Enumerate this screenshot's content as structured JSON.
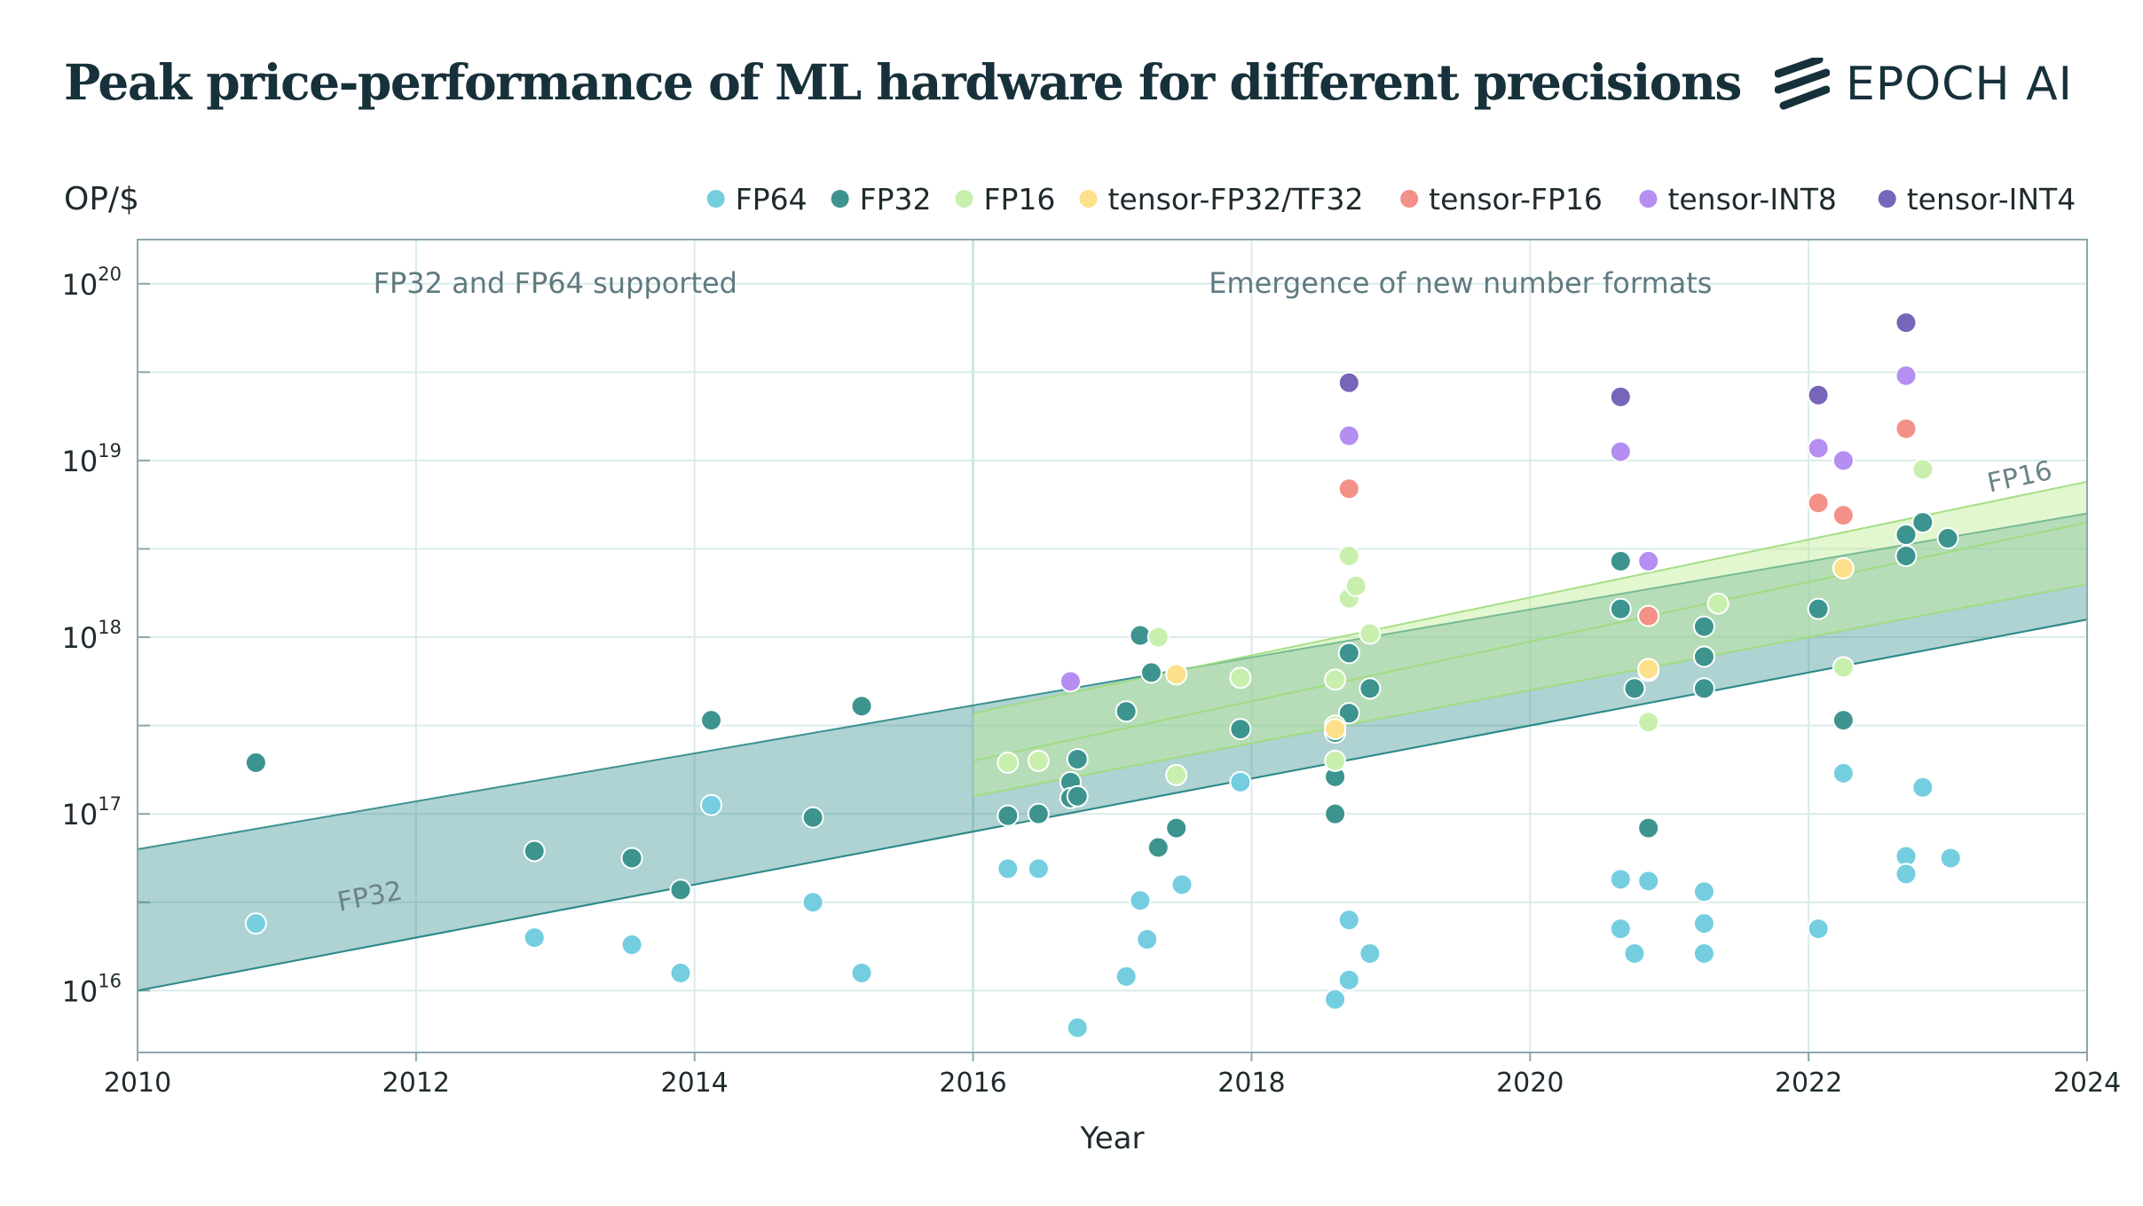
{
  "title": "Peak price-performance of ML hardware for different precisions",
  "brand": {
    "logo_text": "EPOCH AI",
    "logo_icon": "epoch-stripes-icon",
    "color": "#17313b"
  },
  "chart_data": {
    "type": "scatter",
    "ylabel": "OP/$",
    "xlabel": "Year",
    "x_range": [
      2010,
      2024
    ],
    "y_range_log10": [
      15.65,
      20.25
    ],
    "y_scale": "log",
    "x_ticks": [
      "2010",
      "2012",
      "2014",
      "2016",
      "2018",
      "2020",
      "2022",
      "2024"
    ],
    "y_ticks": [
      {
        "base": "10",
        "exp": "16",
        "log": 16
      },
      {
        "base": "10",
        "exp": "17",
        "log": 17
      },
      {
        "base": "10",
        "exp": "18",
        "log": 18
      },
      {
        "base": "10",
        "exp": "19",
        "log": 19
      },
      {
        "base": "10",
        "exp": "20",
        "log": 20
      }
    ],
    "grid": true,
    "legend_position": "top",
    "annotations": [
      {
        "text": "FP32 and FP64 supported",
        "x": 2013,
        "log_y": 20.0
      },
      {
        "text": "Emergence of new number formats",
        "x": 2019.5,
        "log_y": 20.0
      }
    ],
    "divider_x": 2016,
    "trend_bands": [
      {
        "name": "FP32",
        "color": "#2e8a88",
        "fill": "rgba(46,138,136,0.38)",
        "upper": [
          [
            2010,
            16.8
          ],
          [
            2024,
            18.7
          ]
        ],
        "lower": [
          [
            2010,
            16.0
          ],
          [
            2024,
            18.1
          ]
        ],
        "center": [
          [
            2010,
            16.0
          ],
          [
            2024,
            18.1
          ]
        ],
        "label": "FP32",
        "label_x": 2011.45,
        "label_log_y": 16.45
      },
      {
        "name": "FP16",
        "color": "#9fdc7a",
        "fill": "rgba(190,235,150,0.45)",
        "upper": [
          [
            2016,
            17.57
          ],
          [
            2024,
            18.88
          ]
        ],
        "lower": [
          [
            2016,
            17.1
          ],
          [
            2024,
            18.3
          ]
        ],
        "center": [
          [
            2016,
            17.3
          ],
          [
            2024,
            18.65
          ]
        ],
        "label": "FP16",
        "label_x": 2023.3,
        "label_log_y": 18.82
      }
    ],
    "series": [
      {
        "name": "FP64",
        "color": "#74cee0",
        "points": [
          [
            2010.85,
            16.38
          ],
          [
            2012.85,
            16.3
          ],
          [
            2013.55,
            16.26
          ],
          [
            2013.9,
            16.1
          ],
          [
            2014.12,
            17.05
          ],
          [
            2014.85,
            16.5
          ],
          [
            2015.2,
            16.1
          ],
          [
            2016.25,
            16.69
          ],
          [
            2016.47,
            16.69
          ],
          [
            2016.75,
            15.79
          ],
          [
            2017.1,
            16.08
          ],
          [
            2017.2,
            16.51
          ],
          [
            2017.25,
            16.29
          ],
          [
            2017.5,
            16.6
          ],
          [
            2017.92,
            17.18
          ],
          [
            2018.6,
            15.95
          ],
          [
            2018.7,
            16.4
          ],
          [
            2018.7,
            16.06
          ],
          [
            2018.85,
            16.21
          ],
          [
            2020.65,
            16.63
          ],
          [
            2020.65,
            16.35
          ],
          [
            2020.75,
            16.21
          ],
          [
            2020.85,
            16.62
          ],
          [
            2021.25,
            16.56
          ],
          [
            2021.25,
            16.38
          ],
          [
            2021.25,
            16.21
          ],
          [
            2022.07,
            16.35
          ],
          [
            2022.25,
            17.23
          ],
          [
            2022.7,
            16.76
          ],
          [
            2022.7,
            16.66
          ],
          [
            2022.82,
            17.15
          ],
          [
            2023.02,
            16.75
          ]
        ]
      },
      {
        "name": "FP32",
        "color": "#3d948f",
        "points": [
          [
            2010.85,
            17.29
          ],
          [
            2012.85,
            16.79
          ],
          [
            2013.55,
            16.75
          ],
          [
            2013.9,
            16.57
          ],
          [
            2014.12,
            17.53
          ],
          [
            2014.85,
            16.98
          ],
          [
            2015.2,
            17.61
          ],
          [
            2016.25,
            16.99
          ],
          [
            2016.47,
            17.0
          ],
          [
            2016.7,
            17.18
          ],
          [
            2016.7,
            17.09
          ],
          [
            2016.75,
            17.31
          ],
          [
            2016.75,
            17.1
          ],
          [
            2017.1,
            17.58
          ],
          [
            2017.2,
            18.01
          ],
          [
            2017.28,
            17.8
          ],
          [
            2017.33,
            16.81
          ],
          [
            2017.46,
            16.92
          ],
          [
            2017.92,
            17.48
          ],
          [
            2018.6,
            17.46
          ],
          [
            2018.6,
            17.21
          ],
          [
            2018.6,
            17.0
          ],
          [
            2018.7,
            17.57
          ],
          [
            2018.7,
            17.91
          ],
          [
            2018.85,
            17.71
          ],
          [
            2020.65,
            18.43
          ],
          [
            2020.65,
            18.16
          ],
          [
            2020.75,
            17.71
          ],
          [
            2020.85,
            16.92
          ],
          [
            2021.25,
            18.06
          ],
          [
            2021.25,
            17.89
          ],
          [
            2021.25,
            17.71
          ],
          [
            2022.07,
            18.16
          ],
          [
            2022.25,
            17.53
          ],
          [
            2022.7,
            18.58
          ],
          [
            2022.7,
            18.46
          ],
          [
            2022.82,
            18.65
          ],
          [
            2023.0,
            18.56
          ]
        ]
      },
      {
        "name": "FP16",
        "color": "#c9efae",
        "points": [
          [
            2016.25,
            17.29
          ],
          [
            2016.47,
            17.3
          ],
          [
            2017.33,
            18.0
          ],
          [
            2017.46,
            17.22
          ],
          [
            2017.92,
            17.77
          ],
          [
            2018.6,
            17.76
          ],
          [
            2018.6,
            17.5
          ],
          [
            2018.6,
            17.3
          ],
          [
            2018.7,
            18.46
          ],
          [
            2018.7,
            18.22
          ],
          [
            2018.75,
            18.29
          ],
          [
            2018.85,
            18.02
          ],
          [
            2020.85,
            17.81
          ],
          [
            2020.85,
            17.52
          ],
          [
            2021.35,
            18.19
          ],
          [
            2022.25,
            17.83
          ],
          [
            2022.82,
            18.95
          ]
        ]
      },
      {
        "name": "tensor-FP32/TF32",
        "color": "#fde08a",
        "points": [
          [
            2017.46,
            17.79
          ],
          [
            2018.6,
            17.48
          ],
          [
            2020.85,
            17.82
          ],
          [
            2022.25,
            18.39
          ]
        ]
      },
      {
        "name": "tensor-FP16",
        "color": "#f39088",
        "points": [
          [
            2018.7,
            18.84
          ],
          [
            2020.85,
            18.12
          ],
          [
            2022.07,
            18.76
          ],
          [
            2022.25,
            18.69
          ],
          [
            2022.7,
            19.18
          ]
        ]
      },
      {
        "name": "tensor-INT8",
        "color": "#b48ef0",
        "points": [
          [
            2016.7,
            17.75
          ],
          [
            2018.7,
            19.14
          ],
          [
            2020.65,
            19.05
          ],
          [
            2020.85,
            18.43
          ],
          [
            2022.07,
            19.07
          ],
          [
            2022.25,
            19.0
          ],
          [
            2022.7,
            19.48
          ]
        ]
      },
      {
        "name": "tensor-INT4",
        "color": "#7665b9",
        "points": [
          [
            2018.7,
            19.44
          ],
          [
            2020.65,
            19.36
          ],
          [
            2022.07,
            19.37
          ],
          [
            2022.7,
            19.78
          ]
        ]
      }
    ]
  }
}
